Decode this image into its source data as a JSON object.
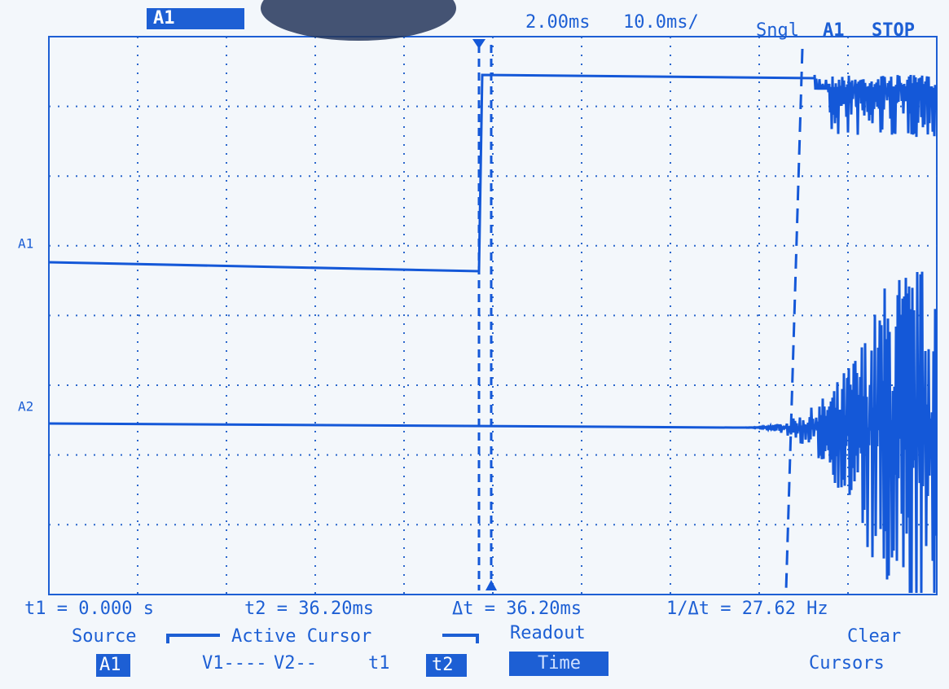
{
  "header": {
    "channel": "A1",
    "trigger_level": "2.00ms",
    "timebase": "10.0ms/",
    "mode": "Sngl",
    "trigger_source": "A1",
    "state": "STOP"
  },
  "markers": {
    "a1": "A1",
    "a2": "A2"
  },
  "readout": {
    "t1": "t1 = 0.000 s",
    "t2": "t2 = 36.20ms",
    "delta": "Δt = 36.20ms",
    "freq": "1/Δt = 27.62 Hz"
  },
  "menu": {
    "source_label": "Source",
    "source_value": "A1",
    "active_cursor_label": "Active Cursor",
    "v1": "V1----",
    "v2": "V2--",
    "t1": "t1",
    "t2": "t2",
    "readout_label": "Readout",
    "readout_value": "Time",
    "clear": "Clear",
    "cursors": "Cursors"
  }
}
